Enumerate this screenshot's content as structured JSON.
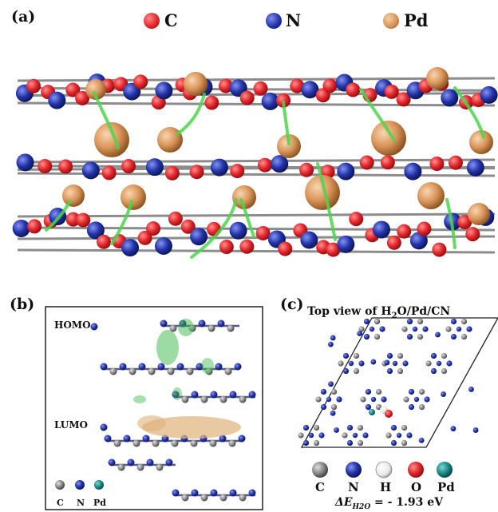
{
  "panel_a": {
    "label": "(a)",
    "legend": [
      {
        "symbol": "C",
        "color": "#e2262b"
      },
      {
        "symbol": "N",
        "color": "#2233a8"
      },
      {
        "symbol": "Pd",
        "color": "#d99458"
      }
    ]
  },
  "panel_b": {
    "label": "(b)",
    "homo_label": "HOMO",
    "lumo_label": "LUMO",
    "legend": [
      {
        "symbol": "C",
        "color": "#7a7a7a"
      },
      {
        "symbol": "N",
        "color": "#2233a8"
      },
      {
        "symbol": "Pd",
        "color": "#1d8a8a"
      }
    ]
  },
  "panel_c": {
    "label": "(c)",
    "title_prefix": "Top view of H",
    "title_sub": "2",
    "title_suffix": "O/Pd/CN",
    "legend": [
      {
        "symbol": "C",
        "color": "#8a8a8a"
      },
      {
        "symbol": "N",
        "color": "#2233a8"
      },
      {
        "symbol": "H",
        "color": "#f2f2f2"
      },
      {
        "symbol": "O",
        "color": "#e2262b"
      },
      {
        "symbol": "Pd",
        "color": "#1d8a8a"
      }
    ],
    "energy_label": "ΔE",
    "energy_sub": "H2O",
    "energy_value": " = - 1.93 eV"
  }
}
